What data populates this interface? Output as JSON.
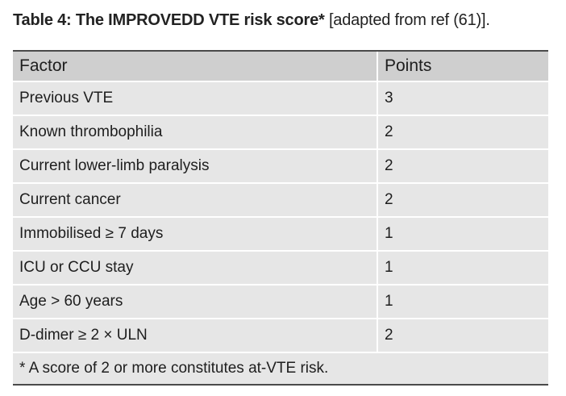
{
  "title": {
    "label": "Table 4: The IMPROVEDD VTE risk score*",
    "source": "[adapted from ref (61)]."
  },
  "table": {
    "headers": [
      "Factor",
      "Points"
    ],
    "rows": [
      [
        "Previous VTE",
        "3"
      ],
      [
        "Known thrombophilia",
        "2"
      ],
      [
        "Current lower-limb paralysis",
        "2"
      ],
      [
        "Current cancer",
        "2"
      ],
      [
        "Immobilised ≥ 7 days",
        "1"
      ],
      [
        "ICU or CCU stay",
        "1"
      ],
      [
        "Age > 60 years",
        "1"
      ],
      [
        "D-dimer ≥ 2 × ULN",
        "2"
      ]
    ],
    "footnote": "* A score of 2 or more constitutes at-VTE risk."
  },
  "colors": {
    "header_bg": "#cfcfcf",
    "row_bg": "#e6e6e6",
    "rule": "#4a4a4a"
  }
}
